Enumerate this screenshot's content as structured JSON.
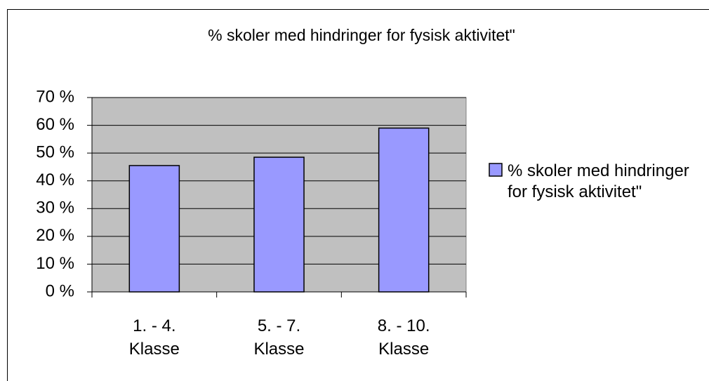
{
  "chart_data": {
    "type": "bar",
    "title": "% skoler med hindringer for fysisk aktivitet\"",
    "categories": [
      "1. - 4. Klasse",
      "5. - 7. Klasse",
      "8. - 10. Klasse"
    ],
    "series": [
      {
        "name": "% skoler med hindringer for fysisk aktivitet\"",
        "color": "#9999ff",
        "values": [
          45.5,
          48.5,
          59
        ]
      }
    ],
    "ylim": [
      0,
      70
    ],
    "yticks": [
      {
        "value": 0,
        "label": "0 %"
      },
      {
        "value": 10,
        "label": "10 %"
      },
      {
        "value": 20,
        "label": "20 %"
      },
      {
        "value": 30,
        "label": "30 %"
      },
      {
        "value": 40,
        "label": "40 %"
      },
      {
        "value": 50,
        "label": "50 %"
      },
      {
        "value": 60,
        "label": "60 %"
      },
      {
        "value": 70,
        "label": "70 %"
      }
    ],
    "grid": true,
    "legend": "right"
  }
}
